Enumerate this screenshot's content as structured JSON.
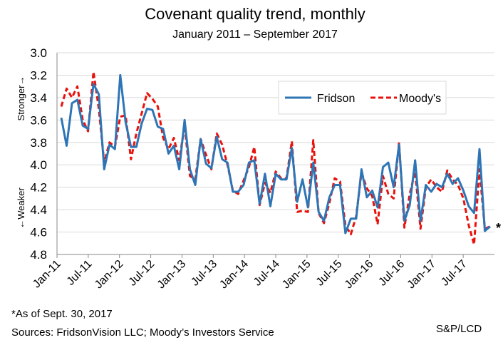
{
  "chart_data": {
    "type": "line",
    "title": "Covenant quality trend, monthly",
    "subtitle": "January 2011 – September 2017",
    "y_axis_label_top": "Stronger→",
    "y_axis_label_bottom": "←Weaker",
    "ylim": [
      3.0,
      4.8
    ],
    "y_inverted": true,
    "y_ticks": [
      "3.0",
      "3.2",
      "3.4",
      "3.6",
      "3.8",
      "4.0",
      "4.2",
      "4.4",
      "4.6",
      "4.8"
    ],
    "x_ticks": [
      "Jan-11",
      "Jul-11",
      "Jan-12",
      "Jul-12",
      "Jan-13",
      "Jul-13",
      "Jan-14",
      "Jul-14",
      "Jan-15",
      "Jul-15",
      "Jan-16",
      "Jul-16",
      "Jan-17",
      "Jul-17"
    ],
    "grid": "horizontal",
    "legend_position": "top-right",
    "end_marker": "*",
    "series": [
      {
        "name": "Fridson",
        "color": "#2e75b6",
        "style": "solid",
        "values": [
          3.58,
          3.83,
          3.45,
          3.42,
          3.65,
          3.68,
          3.28,
          3.37,
          4.04,
          3.82,
          3.86,
          3.2,
          3.62,
          3.84,
          3.84,
          3.63,
          3.5,
          3.51,
          3.66,
          3.68,
          3.9,
          3.83,
          4.04,
          3.6,
          4.04,
          4.18,
          3.77,
          3.99,
          4.03,
          3.75,
          3.95,
          3.98,
          4.24,
          4.24,
          4.18,
          3.98,
          3.96,
          4.35,
          4.08,
          4.37,
          4.08,
          4.13,
          4.13,
          3.85,
          4.33,
          4.13,
          4.38,
          3.98,
          4.42,
          4.5,
          4.29,
          4.18,
          4.18,
          4.61,
          4.48,
          4.48,
          4.04,
          4.29,
          4.23,
          4.38,
          4.02,
          3.98,
          4.2,
          3.82,
          4.5,
          4.36,
          3.96,
          4.5,
          4.18,
          4.24,
          4.17,
          4.2,
          4.08,
          4.17,
          4.12,
          4.23,
          4.37,
          4.43,
          3.86,
          4.59,
          4.55
        ]
      },
      {
        "name": "Moody's",
        "color": "#e8120c",
        "style": "dashed",
        "values": [
          3.48,
          3.32,
          3.4,
          3.3,
          3.6,
          3.7,
          3.17,
          3.5,
          3.98,
          3.8,
          3.84,
          3.57,
          3.56,
          3.95,
          3.72,
          3.54,
          3.36,
          3.41,
          3.48,
          3.76,
          3.86,
          3.76,
          3.96,
          3.65,
          4.1,
          4.13,
          3.77,
          3.91,
          4.04,
          3.72,
          3.82,
          4.0,
          4.23,
          4.26,
          4.14,
          4.02,
          3.84,
          4.36,
          4.16,
          4.25,
          4.06,
          4.12,
          4.12,
          3.79,
          4.42,
          4.41,
          4.42,
          3.78,
          4.43,
          4.52,
          4.34,
          4.12,
          4.15,
          4.54,
          4.62,
          4.46,
          4.07,
          4.21,
          4.28,
          4.53,
          4.1,
          4.26,
          4.3,
          3.8,
          4.56,
          4.26,
          4.06,
          4.57,
          4.2,
          4.13,
          4.2,
          4.24,
          4.05,
          4.13,
          4.18,
          4.3,
          4.54,
          4.71,
          4.04,
          4.57,
          4.55
        ]
      }
    ]
  },
  "notes": {
    "footnote": "*As of Sept. 30, 2017",
    "sources": "Sources: FridsonVision LLC; Moody’s Investors Service",
    "credit": "S&P/LCD"
  }
}
